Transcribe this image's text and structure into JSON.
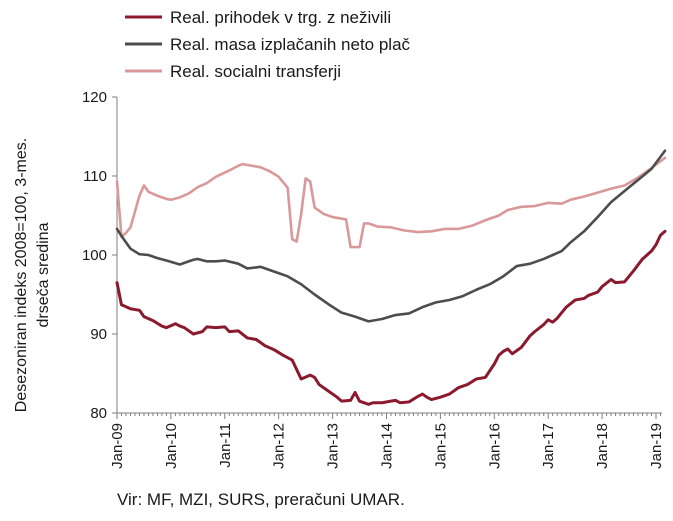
{
  "colors": {
    "income": "#8b1a2e",
    "wages": "#4d4d4d",
    "transfers": "#d9999b",
    "axis": "#7f7f7f"
  },
  "source_note": "Vir: MF, MZI, SURS, preračuni UMAR.",
  "chart_data": {
    "type": "line",
    "title": "",
    "xlabel": "",
    "ylabel_lines": [
      "Desezoniran indeks 2008=100, 3-mes.",
      "drseča sredina"
    ],
    "ylim": [
      80,
      120
    ],
    "yticks": [
      80,
      90,
      100,
      110,
      120
    ],
    "xticks": [
      "Jan-09",
      "Jan-10",
      "Jan-11",
      "Jan-12",
      "Jan-13",
      "Jan-14",
      "Jan-15",
      "Jan-16",
      "Jan-17",
      "Jan-18",
      "Jan-19"
    ],
    "x_range": [
      "Jan-09",
      "Mar-19"
    ],
    "grid": false,
    "legend_position": "top-left",
    "series": [
      {
        "name": "Real. prihodek v trg. z neživili",
        "color": "#8b1a2e",
        "points": [
          [
            "Jan-09",
            96.5
          ],
          [
            "Feb-09",
            93.7
          ],
          [
            "Apr-09",
            93.2
          ],
          [
            "Jun-09",
            93.0
          ],
          [
            "Jul-09",
            92.2
          ],
          [
            "Sep-09",
            91.7
          ],
          [
            "Nov-09",
            91.0
          ],
          [
            "Dec-09",
            90.8
          ],
          [
            "Feb-10",
            91.3
          ],
          [
            "Mar-10",
            91.0
          ],
          [
            "Apr-10",
            90.8
          ],
          [
            "Jun-10",
            90.0
          ],
          [
            "Aug-10",
            90.3
          ],
          [
            "Sep-10",
            90.9
          ],
          [
            "Nov-10",
            90.8
          ],
          [
            "Jan-11",
            90.9
          ],
          [
            "Feb-11",
            90.3
          ],
          [
            "Apr-11",
            90.4
          ],
          [
            "Jun-11",
            89.5
          ],
          [
            "Aug-11",
            89.3
          ],
          [
            "Oct-11",
            88.5
          ],
          [
            "Dec-11",
            88.0
          ],
          [
            "Feb-12",
            87.3
          ],
          [
            "Apr-12",
            86.7
          ],
          [
            "Jun-12",
            84.3
          ],
          [
            "Aug-12",
            84.8
          ],
          [
            "Sep-12",
            84.5
          ],
          [
            "Oct-12",
            83.6
          ],
          [
            "Dec-12",
            82.8
          ],
          [
            "Feb-13",
            82.0
          ],
          [
            "Mar-13",
            81.5
          ],
          [
            "May-13",
            81.6
          ],
          [
            "Jun-13",
            82.6
          ],
          [
            "Jul-13",
            81.5
          ],
          [
            "Sep-13",
            81.1
          ],
          [
            "Oct-13",
            81.3
          ],
          [
            "Dec-13",
            81.3
          ],
          [
            "Feb-14",
            81.5
          ],
          [
            "Mar-14",
            81.6
          ],
          [
            "Apr-14",
            81.3
          ],
          [
            "Jun-14",
            81.4
          ],
          [
            "Aug-14",
            82.1
          ],
          [
            "Sep-14",
            82.4
          ],
          [
            "Oct-14",
            82.0
          ],
          [
            "Nov-14",
            81.7
          ],
          [
            "Jan-15",
            82.0
          ],
          [
            "Mar-15",
            82.4
          ],
          [
            "May-15",
            83.2
          ],
          [
            "Jul-15",
            83.6
          ],
          [
            "Sep-15",
            84.3
          ],
          [
            "Nov-15",
            84.5
          ],
          [
            "Jan-16",
            86.2
          ],
          [
            "Feb-16",
            87.3
          ],
          [
            "Mar-16",
            87.8
          ],
          [
            "Apr-16",
            88.1
          ],
          [
            "May-16",
            87.5
          ],
          [
            "Jul-16",
            88.3
          ],
          [
            "Sep-16",
            89.8
          ],
          [
            "Oct-16",
            90.3
          ],
          [
            "Dec-16",
            91.2
          ],
          [
            "Jan-17",
            91.8
          ],
          [
            "Feb-17",
            91.5
          ],
          [
            "Mar-17",
            92.0
          ],
          [
            "May-17",
            93.4
          ],
          [
            "Jul-17",
            94.3
          ],
          [
            "Sep-17",
            94.5
          ],
          [
            "Oct-17",
            94.9
          ],
          [
            "Dec-17",
            95.3
          ],
          [
            "Jan-18",
            96.0
          ],
          [
            "Mar-18",
            96.9
          ],
          [
            "Apr-18",
            96.5
          ],
          [
            "Jun-18",
            96.6
          ],
          [
            "Aug-18",
            98.0
          ],
          [
            "Oct-18",
            99.5
          ],
          [
            "Dec-18",
            100.5
          ],
          [
            "Jan-19",
            101.3
          ],
          [
            "Feb-19",
            102.5
          ],
          [
            "Mar-19",
            103.0
          ]
        ]
      },
      {
        "name": "Real. masa izplačanih neto plač",
        "color": "#4d4d4d",
        "points": [
          [
            "Jan-09",
            103.3
          ],
          [
            "Feb-09",
            102.4
          ],
          [
            "Apr-09",
            100.8
          ],
          [
            "Jun-09",
            100.1
          ],
          [
            "Aug-09",
            100.0
          ],
          [
            "Oct-09",
            99.6
          ],
          [
            "Dec-09",
            99.3
          ],
          [
            "Mar-10",
            98.8
          ],
          [
            "Apr-10",
            99.0
          ],
          [
            "Jun-10",
            99.4
          ],
          [
            "Jul-10",
            99.5
          ],
          [
            "Sep-10",
            99.2
          ],
          [
            "Nov-10",
            99.2
          ],
          [
            "Jan-11",
            99.3
          ],
          [
            "Apr-11",
            98.9
          ],
          [
            "Jun-11",
            98.3
          ],
          [
            "Sep-11",
            98.5
          ],
          [
            "Dec-11",
            97.9
          ],
          [
            "Mar-12",
            97.3
          ],
          [
            "Jun-12",
            96.3
          ],
          [
            "Sep-12",
            95.0
          ],
          [
            "Dec-12",
            93.8
          ],
          [
            "Mar-13",
            92.7
          ],
          [
            "Jun-13",
            92.2
          ],
          [
            "Sep-13",
            91.6
          ],
          [
            "Dec-13",
            91.9
          ],
          [
            "Mar-14",
            92.4
          ],
          [
            "Jun-14",
            92.6
          ],
          [
            "Sep-14",
            93.4
          ],
          [
            "Dec-14",
            94.0
          ],
          [
            "Mar-15",
            94.3
          ],
          [
            "Jun-15",
            94.8
          ],
          [
            "Sep-15",
            95.6
          ],
          [
            "Dec-15",
            96.3
          ],
          [
            "Mar-16",
            97.3
          ],
          [
            "Jun-16",
            98.6
          ],
          [
            "Sep-16",
            98.9
          ],
          [
            "Dec-16",
            99.5
          ],
          [
            "Feb-17",
            100.0
          ],
          [
            "Apr-17",
            100.5
          ],
          [
            "Jun-17",
            101.6
          ],
          [
            "Sep-17",
            103.0
          ],
          [
            "Dec-17",
            104.8
          ],
          [
            "Mar-18",
            106.7
          ],
          [
            "Jun-18",
            108.1
          ],
          [
            "Sep-18",
            109.5
          ],
          [
            "Dec-18",
            110.9
          ],
          [
            "Mar-19",
            113.2
          ]
        ]
      },
      {
        "name": "Real. socialni transferji",
        "color": "#d9999b",
        "points": [
          [
            "Jan-09",
            109.3
          ],
          [
            "Feb-09",
            102.3
          ],
          [
            "Mar-09",
            102.8
          ],
          [
            "Apr-09",
            103.5
          ],
          [
            "May-09",
            105.5
          ],
          [
            "Jun-09",
            107.5
          ],
          [
            "Jul-09",
            108.8
          ],
          [
            "Aug-09",
            108.0
          ],
          [
            "Oct-09",
            107.5
          ],
          [
            "Dec-09",
            107.1
          ],
          [
            "Jan-10",
            107.0
          ],
          [
            "Mar-10",
            107.3
          ],
          [
            "May-10",
            107.8
          ],
          [
            "Jul-10",
            108.6
          ],
          [
            "Sep-10",
            109.1
          ],
          [
            "Nov-10",
            109.9
          ],
          [
            "Feb-11",
            110.7
          ],
          [
            "Apr-11",
            111.3
          ],
          [
            "May-11",
            111.5
          ],
          [
            "Jul-11",
            111.3
          ],
          [
            "Sep-11",
            111.1
          ],
          [
            "Nov-11",
            110.6
          ],
          [
            "Jan-12",
            109.9
          ],
          [
            "Mar-12",
            108.5
          ],
          [
            "Apr-12",
            102.0
          ],
          [
            "May-12",
            101.7
          ],
          [
            "Jun-12",
            105.2
          ],
          [
            "Jul-12",
            109.7
          ],
          [
            "Aug-12",
            109.3
          ],
          [
            "Sep-12",
            106.0
          ],
          [
            "Nov-12",
            105.2
          ],
          [
            "Jan-13",
            104.8
          ],
          [
            "Apr-13",
            104.5
          ],
          [
            "May-13",
            101.0
          ],
          [
            "Jul-13",
            101.0
          ],
          [
            "Aug-13",
            104.0
          ],
          [
            "Sep-13",
            104.0
          ],
          [
            "Nov-13",
            103.6
          ],
          [
            "Feb-14",
            103.5
          ],
          [
            "May-14",
            103.1
          ],
          [
            "Aug-14",
            102.9
          ],
          [
            "Nov-14",
            103.0
          ],
          [
            "Feb-15",
            103.3
          ],
          [
            "May-15",
            103.3
          ],
          [
            "Aug-15",
            103.7
          ],
          [
            "Nov-15",
            104.4
          ],
          [
            "Feb-16",
            105.0
          ],
          [
            "Apr-16",
            105.7
          ],
          [
            "Jul-16",
            106.1
          ],
          [
            "Oct-16",
            106.2
          ],
          [
            "Jan-17",
            106.6
          ],
          [
            "Apr-17",
            106.5
          ],
          [
            "Jun-17",
            107.0
          ],
          [
            "Sep-17",
            107.4
          ],
          [
            "Dec-17",
            107.9
          ],
          [
            "Mar-18",
            108.4
          ],
          [
            "Jun-18",
            108.8
          ],
          [
            "Sep-18",
            109.8
          ],
          [
            "Dec-18",
            111.0
          ],
          [
            "Mar-19",
            112.3
          ]
        ]
      }
    ]
  }
}
